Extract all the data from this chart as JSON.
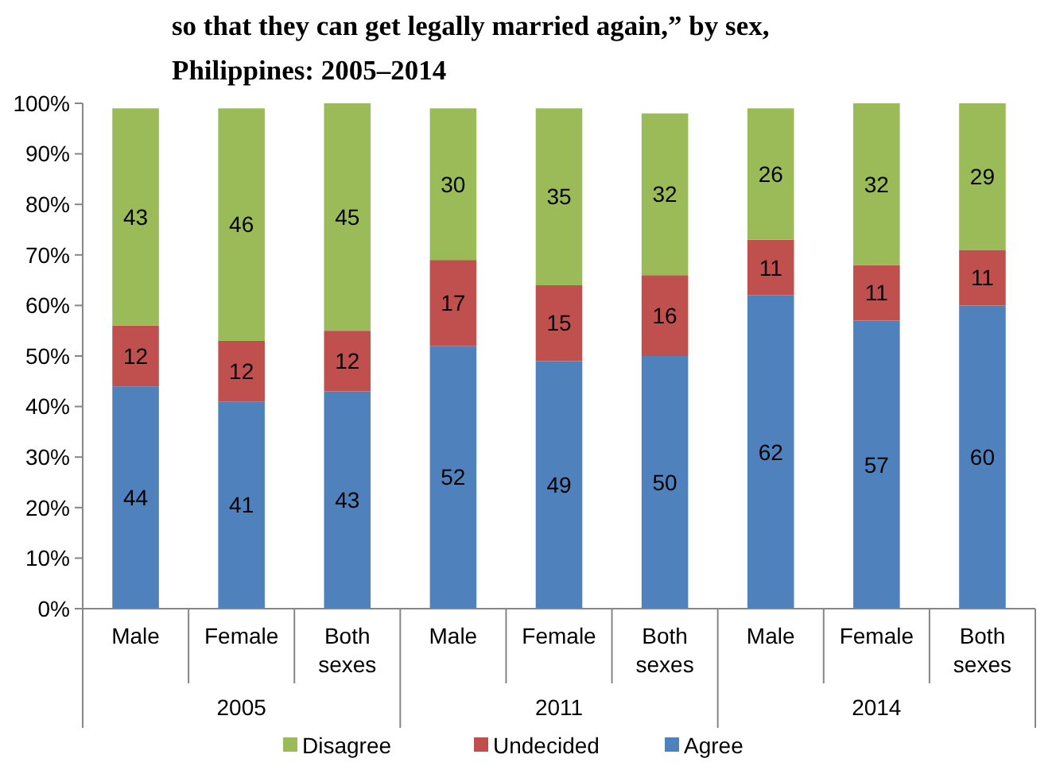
{
  "chart_data": {
    "type": "bar",
    "stacked": true,
    "title": "so that they can get legally married again,” by sex, Philippines: 2005–2014",
    "categories": [
      "Male",
      "Female",
      "Both sexes",
      "Male",
      "Female",
      "Both sexes",
      "Male",
      "Female",
      "Both sexes"
    ],
    "series": [
      {
        "name": "Agree",
        "color": "#4f81bd",
        "values": [
          44,
          41,
          43,
          52,
          49,
          50,
          62,
          57,
          60
        ]
      },
      {
        "name": "Undecided",
        "color": "#c0504d",
        "values": [
          12,
          12,
          12,
          17,
          15,
          16,
          11,
          11,
          11
        ]
      },
      {
        "name": "Disagree",
        "color": "#9bbb59",
        "values": [
          43,
          46,
          45,
          30,
          35,
          32,
          26,
          32,
          29
        ]
      }
    ],
    "annotations": [
      "2005",
      "2011",
      "2014"
    ],
    "ylim": [
      0,
      100
    ],
    "yticks": [
      {
        "value": 0,
        "label": "0%"
      },
      {
        "value": 10,
        "label": "10%"
      },
      {
        "value": 20,
        "label": "20%"
      },
      {
        "value": 30,
        "label": "30%"
      },
      {
        "value": 40,
        "label": "40%"
      },
      {
        "value": 50,
        "label": "50%"
      },
      {
        "value": 60,
        "label": "60%"
      },
      {
        "value": 70,
        "label": "70%"
      },
      {
        "value": 80,
        "label": "80%"
      },
      {
        "value": 90,
        "label": "90%"
      },
      {
        "value": 100,
        "label": "100%"
      }
    ],
    "data_labels": true,
    "grid": false,
    "legend": "bottom"
  }
}
